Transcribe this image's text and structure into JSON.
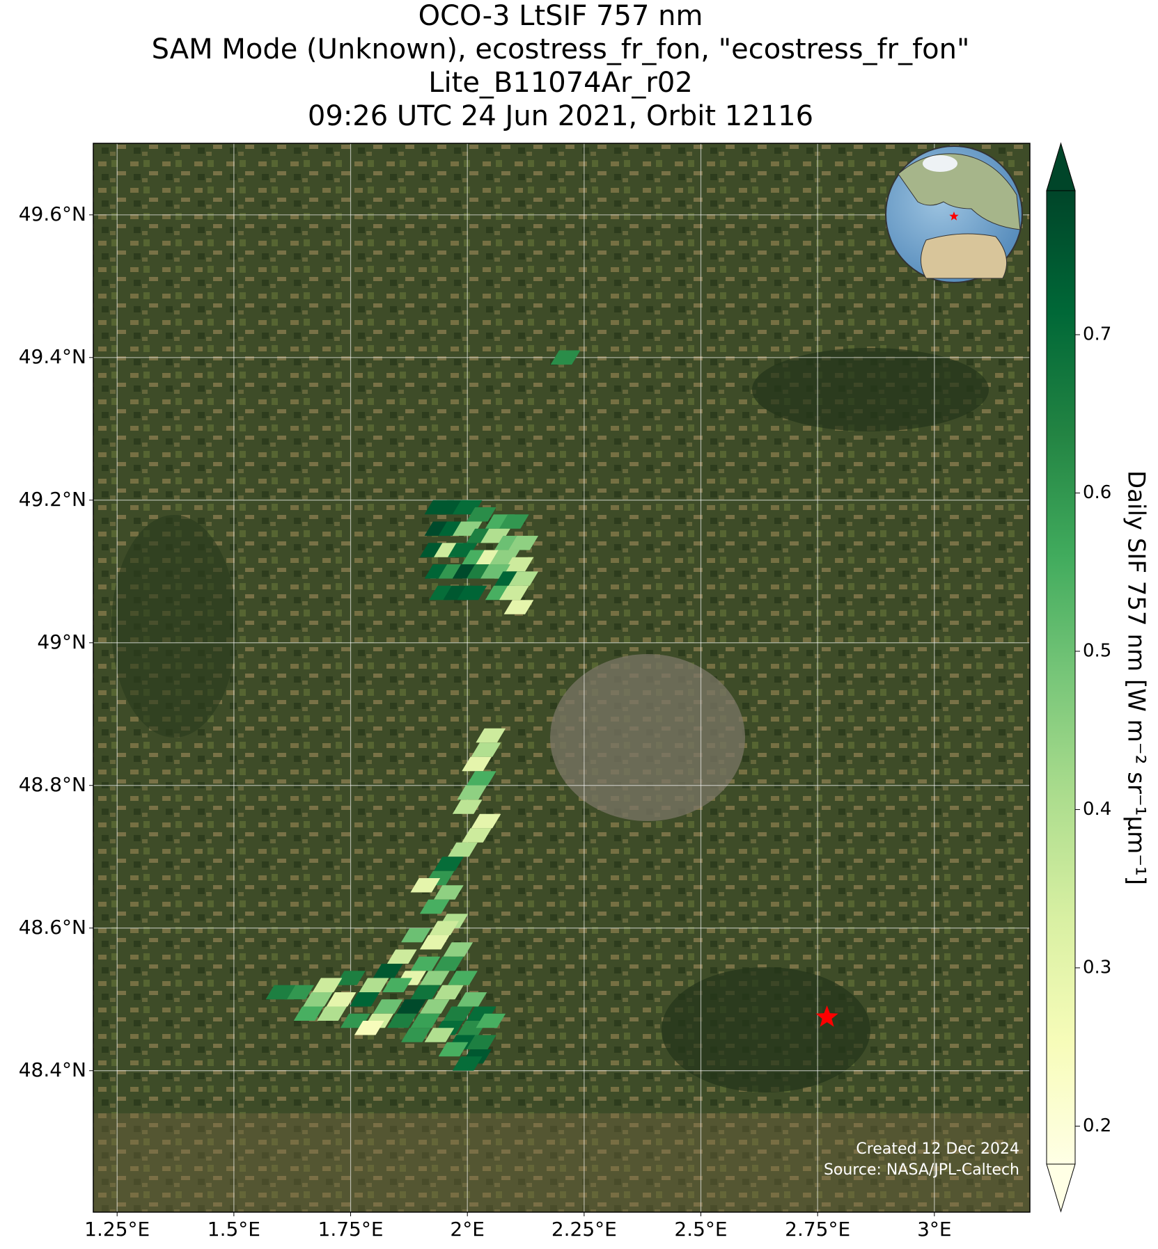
{
  "chart_data": {
    "type": "map",
    "title": [
      "OCO-3 LtSIF 757 nm",
      "SAM Mode (Unknown), ecostress_fr_fon, \"ecostress_fr_fon\"",
      "Lite_B11074Ar_r02",
      "09:26 UTC 24 Jun 2021, Orbit 12116"
    ],
    "xlim": [
      1.199,
      3.2045
    ],
    "ylim": [
      48.2017,
      49.7003
    ],
    "xticks": [
      {
        "value": 1.25,
        "label": "1.25°E"
      },
      {
        "value": 1.5,
        "label": "1.5°E"
      },
      {
        "value": 1.75,
        "label": "1.75°E"
      },
      {
        "value": 2,
        "label": "2°E"
      },
      {
        "value": 2.25,
        "label": "2.25°E"
      },
      {
        "value": 2.5,
        "label": "2.5°E"
      },
      {
        "value": 2.75,
        "label": "2.75°E"
      },
      {
        "value": 3,
        "label": "3°E"
      }
    ],
    "yticks": [
      {
        "value": 48.4,
        "label": "48.4°N"
      },
      {
        "value": 48.6,
        "label": "48.6°N"
      },
      {
        "value": 48.8,
        "label": "48.8°N"
      },
      {
        "value": 49,
        "label": "49°N"
      },
      {
        "value": 49.2,
        "label": "49.2°N"
      },
      {
        "value": 49.4,
        "label": "49.4°N"
      },
      {
        "value": 49.6,
        "label": "49.6°N"
      }
    ],
    "grid": true,
    "footprints": {
      "lon": [
        1.94,
        1.97,
        2.0,
        2.03,
        2.07,
        2.1,
        1.94,
        1.97,
        2.0,
        2.03,
        2.06,
        2.09,
        2.12,
        1.93,
        1.96,
        1.99,
        2.02,
        2.05,
        2.08,
        2.11,
        1.94,
        1.97,
        2.0,
        2.03,
        2.06,
        2.09,
        2.12,
        1.95,
        1.98,
        2.01,
        2.07,
        2.1,
        2.11,
        2.21,
        2.05,
        2.04,
        2.02,
        2.03,
        2.01,
        2.0,
        2.04,
        2.02,
        1.99,
        1.96,
        1.94,
        1.91,
        1.96,
        1.93,
        1.97,
        1.95,
        1.89,
        1.93,
        1.98,
        1.86,
        1.91,
        1.96,
        1.83,
        1.88,
        1.93,
        1.99,
        1.75,
        1.8,
        1.85,
        1.7,
        1.91,
        1.96,
        2.01,
        1.64,
        1.68,
        1.73,
        1.78,
        1.83,
        1.88,
        1.93,
        1.98,
        2.03,
        1.6,
        1.66,
        1.71,
        1.76,
        1.81,
        1.86,
        1.91,
        1.96,
        2.01,
        2.05,
        1.79,
        1.89,
        1.94,
        1.99,
        2.03,
        1.97,
        2.02,
        2.0
      ],
      "lat": [
        49.19,
        49.19,
        49.19,
        49.18,
        49.17,
        49.17,
        49.16,
        49.16,
        49.16,
        49.15,
        49.15,
        49.14,
        49.14,
        49.13,
        49.13,
        49.13,
        49.12,
        49.12,
        49.12,
        49.11,
        49.1,
        49.1,
        49.1,
        49.1,
        49.1,
        49.09,
        49.09,
        49.07,
        49.07,
        49.07,
        49.07,
        49.07,
        49.05,
        49.4,
        48.87,
        48.85,
        48.83,
        48.81,
        48.79,
        48.77,
        48.75,
        48.73,
        48.71,
        48.69,
        48.67,
        48.66,
        48.65,
        48.63,
        48.61,
        48.6,
        48.59,
        48.58,
        48.57,
        48.56,
        48.55,
        48.55,
        48.54,
        48.53,
        48.53,
        48.53,
        48.53,
        48.52,
        48.52,
        48.52,
        48.51,
        48.51,
        48.5,
        48.51,
        48.5,
        48.5,
        48.5,
        48.49,
        48.49,
        48.49,
        48.48,
        48.48,
        48.51,
        48.48,
        48.48,
        48.47,
        48.47,
        48.47,
        48.47,
        48.46,
        48.46,
        48.47,
        48.46,
        48.45,
        48.45,
        48.44,
        48.44,
        48.43,
        48.42,
        48.41
      ],
      "values": [
        0.75,
        0.75,
        0.7,
        0.62,
        0.55,
        0.6,
        0.78,
        0.72,
        0.45,
        0.65,
        0.4,
        0.5,
        0.45,
        0.75,
        0.35,
        0.7,
        0.55,
        0.3,
        0.45,
        0.35,
        0.72,
        0.6,
        0.78,
        0.65,
        0.5,
        0.72,
        0.4,
        0.7,
        0.75,
        0.72,
        0.55,
        0.35,
        0.3,
        0.62,
        0.35,
        0.4,
        0.3,
        0.55,
        0.45,
        0.38,
        0.3,
        0.35,
        0.4,
        0.7,
        0.6,
        0.3,
        0.45,
        0.55,
        0.4,
        0.35,
        0.5,
        0.3,
        0.45,
        0.35,
        0.55,
        0.6,
        0.75,
        0.3,
        0.45,
        0.55,
        0.65,
        0.4,
        0.55,
        0.35,
        0.68,
        0.4,
        0.5,
        0.6,
        0.45,
        0.3,
        0.72,
        0.5,
        0.78,
        0.45,
        0.65,
        0.7,
        0.65,
        0.55,
        0.4,
        0.6,
        0.35,
        0.65,
        0.58,
        0.7,
        0.62,
        0.55,
        0.25,
        0.6,
        0.4,
        0.72,
        0.65,
        0.55,
        0.75,
        0.7
      ]
    },
    "site": {
      "lon": 2.77,
      "lat": 48.475,
      "color": "#ff0000"
    },
    "colorbar": {
      "label": "Daily SIF 757 nm [W m⁻² sr⁻¹μm⁻¹]",
      "lim": [
        0.176,
        0.791
      ],
      "ticks": [
        0.2,
        0.3,
        0.4,
        0.5,
        0.6,
        0.7
      ],
      "colormap": [
        "#ffffe5",
        "#f7fcb9",
        "#d9f0a3",
        "#addd8e",
        "#78c679",
        "#41ab5d",
        "#238443",
        "#006837",
        "#004529"
      ],
      "extend": "both"
    },
    "annotations": [
      "Created 12 Dec 2024",
      "Source: NASA/JPL-Caltech"
    ]
  }
}
